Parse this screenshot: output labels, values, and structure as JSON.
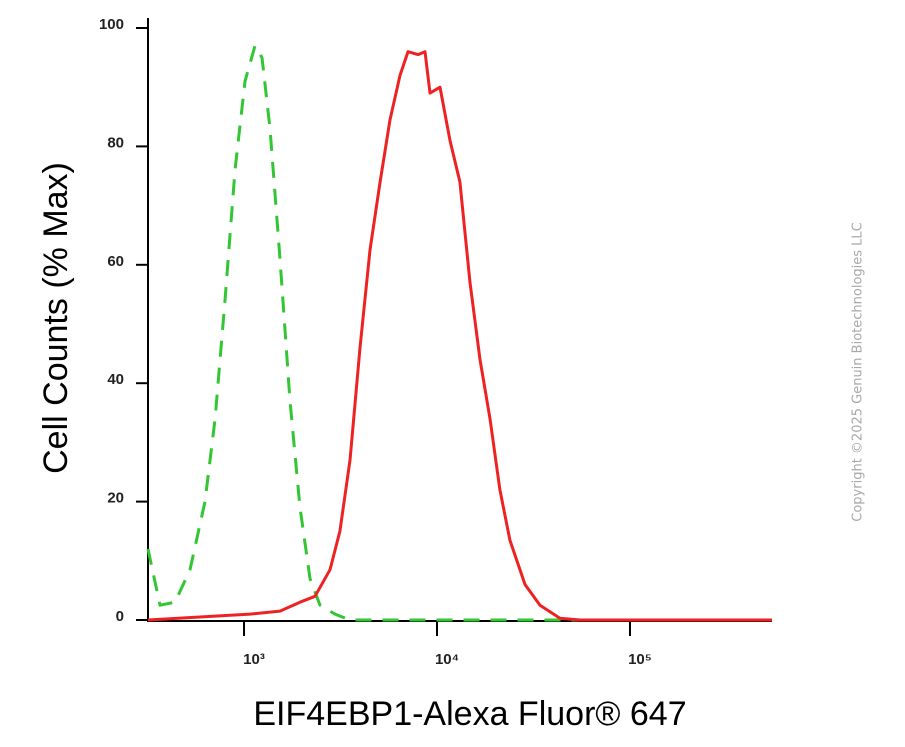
{
  "chart_data": {
    "type": "line",
    "x_scale": "log",
    "xlabel": "EIF4EBP1-Alexa Fluor® 647",
    "ylabel": "Cell Counts (% Max)",
    "watermark": "Copyright ©2025 Genuin Biotechnologies LLC",
    "xlim": [
      318,
      544500
    ],
    "ylim": [
      0,
      100
    ],
    "xticks": [
      {
        "value": 1000,
        "label": "10³"
      },
      {
        "value": 10000,
        "label": "10⁴"
      },
      {
        "value": 100000,
        "label": "10⁵"
      }
    ],
    "yticks": [
      0,
      20,
      40,
      60,
      80,
      100
    ],
    "series": [
      {
        "color": "#33c633",
        "dashed": true,
        "x": [
          318,
          367,
          439,
          525,
          628,
          708,
          797,
          898,
          1012,
          1140,
          1240,
          1363,
          1537,
          1730,
          1950,
          2198,
          2477,
          2962,
          3541,
          544500
        ],
        "values": [
          12,
          2.5,
          3,
          8.5,
          20,
          34,
          54,
          76,
          91,
          97,
          95,
          83,
          61,
          37,
          19,
          7,
          2.5,
          1,
          0,
          0
        ]
      },
      {
        "color": "#ee2222",
        "dashed": false,
        "x": [
          318,
          591,
          1074,
          1537,
          1950,
          2333,
          2790,
          3141,
          3541,
          3990,
          4498,
          5070,
          5706,
          6430,
          7075,
          7976,
          8670,
          9204,
          10370,
          11680,
          13150,
          14830,
          16710,
          18830,
          21190,
          23880,
          28570,
          34200,
          43360,
          55080,
          544500
        ],
        "values": [
          0,
          0.5,
          1,
          1.5,
          3,
          4,
          8.5,
          15,
          27,
          46,
          62.5,
          74,
          84.5,
          92,
          96,
          95.5,
          96,
          89,
          90,
          81,
          74,
          57,
          44,
          34,
          22,
          13.5,
          6,
          2.5,
          0.3,
          0,
          0
        ]
      }
    ]
  }
}
